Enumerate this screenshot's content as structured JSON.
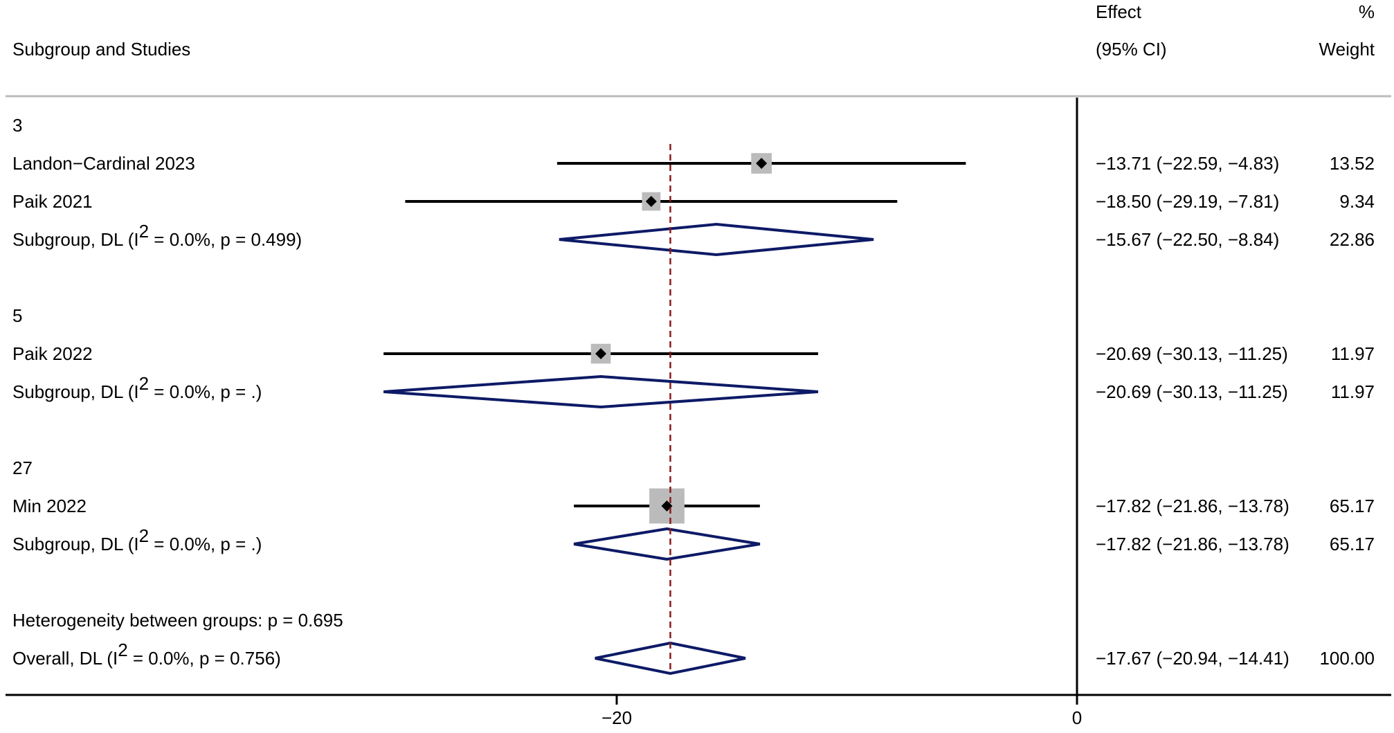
{
  "chart_data": {
    "type": "forest",
    "headers": {
      "study": "Subgroup and Studies",
      "effect_line1": "Effect",
      "effect_line2": "(95% CI)",
      "weight_line1": "%",
      "weight_line2": "Weight"
    },
    "x_ticks": [
      {
        "value": -20,
        "label": "−20"
      },
      {
        "value": 0,
        "label": "0"
      }
    ],
    "null_line": 0,
    "overall_line": -17.67,
    "rows": [
      {
        "kind": "group",
        "label": "3"
      },
      {
        "kind": "study",
        "label": "Landon−Cardinal 2023",
        "est": -13.71,
        "lo": -22.59,
        "hi": -4.83,
        "weight": 13.52,
        "effect_text": "−13.71 (−22.59, −4.83)",
        "weight_text": "13.52"
      },
      {
        "kind": "study",
        "label": "Paik 2021",
        "est": -18.5,
        "lo": -29.19,
        "hi": -7.81,
        "weight": 9.34,
        "effect_text": "−18.50 (−29.19, −7.81)",
        "weight_text": "9.34"
      },
      {
        "kind": "subtotal",
        "label_pre": "Subgroup, DL (I",
        "label_sup": "2",
        "label_post": " = 0.0%, p = 0.499)",
        "est": -15.67,
        "lo": -22.5,
        "hi": -8.84,
        "weight": 22.86,
        "effect_text": "−15.67 (−22.50, −8.84)",
        "weight_text": "22.86"
      },
      {
        "kind": "blank"
      },
      {
        "kind": "group",
        "label": "5"
      },
      {
        "kind": "study",
        "label": "Paik 2022",
        "est": -20.69,
        "lo": -30.13,
        "hi": -11.25,
        "weight": 11.97,
        "effect_text": "−20.69 (−30.13, −11.25)",
        "weight_text": "11.97"
      },
      {
        "kind": "subtotal",
        "label_pre": "Subgroup, DL (I",
        "label_sup": "2",
        "label_post": " = 0.0%, p = .)",
        "est": -20.69,
        "lo": -30.13,
        "hi": -11.25,
        "weight": 11.97,
        "effect_text": "−20.69 (−30.13, −11.25)",
        "weight_text": "11.97"
      },
      {
        "kind": "blank"
      },
      {
        "kind": "group",
        "label": "27"
      },
      {
        "kind": "study",
        "label": "Min 2022",
        "est": -17.82,
        "lo": -21.86,
        "hi": -13.78,
        "weight": 65.17,
        "effect_text": "−17.82 (−21.86, −13.78)",
        "weight_text": "65.17"
      },
      {
        "kind": "subtotal",
        "label_pre": "Subgroup, DL (I",
        "label_sup": "2",
        "label_post": " = 0.0%, p = .)",
        "est": -17.82,
        "lo": -21.86,
        "hi": -13.78,
        "weight": 65.17,
        "effect_text": "−17.82 (−21.86, −13.78)",
        "weight_text": "65.17"
      },
      {
        "kind": "blank"
      },
      {
        "kind": "note",
        "label": "Heterogeneity between groups: p = 0.695"
      },
      {
        "kind": "overall",
        "label_pre": "Overall, DL (I",
        "label_sup": "2",
        "label_post": " = 0.0%, p = 0.756)",
        "est": -17.67,
        "lo": -20.94,
        "hi": -14.41,
        "weight": 100.0,
        "effect_text": "−17.67 (−20.94, −14.41)",
        "weight_text": "100.00"
      }
    ],
    "colors": {
      "ci_line": "#000000",
      "marker": "#000000",
      "weight_box": "#bbbbbb",
      "diamond": "#0d1a66",
      "overall_line": "#8b1a1a",
      "axis": "#000000",
      "header_rule": "#bbbbbb"
    }
  }
}
